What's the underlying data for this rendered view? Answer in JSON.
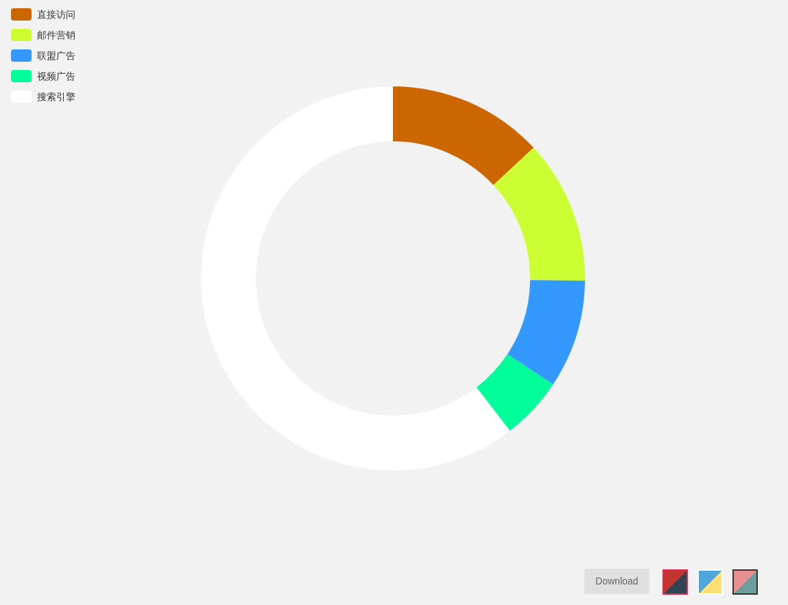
{
  "chart_data": {
    "type": "donut",
    "categories": [
      "直接访问",
      "邮件营销",
      "联盟广告",
      "视频广告",
      "搜索引擎"
    ],
    "values": [
      13.08,
      12.1,
      9.13,
      5.27,
      60.42
    ],
    "colors": [
      "#cc6600",
      "#ccff33",
      "#3399ff",
      "#00ff99",
      "#ffffff"
    ],
    "legend": "top left",
    "annotations": [
      "Download"
    ]
  }
}
